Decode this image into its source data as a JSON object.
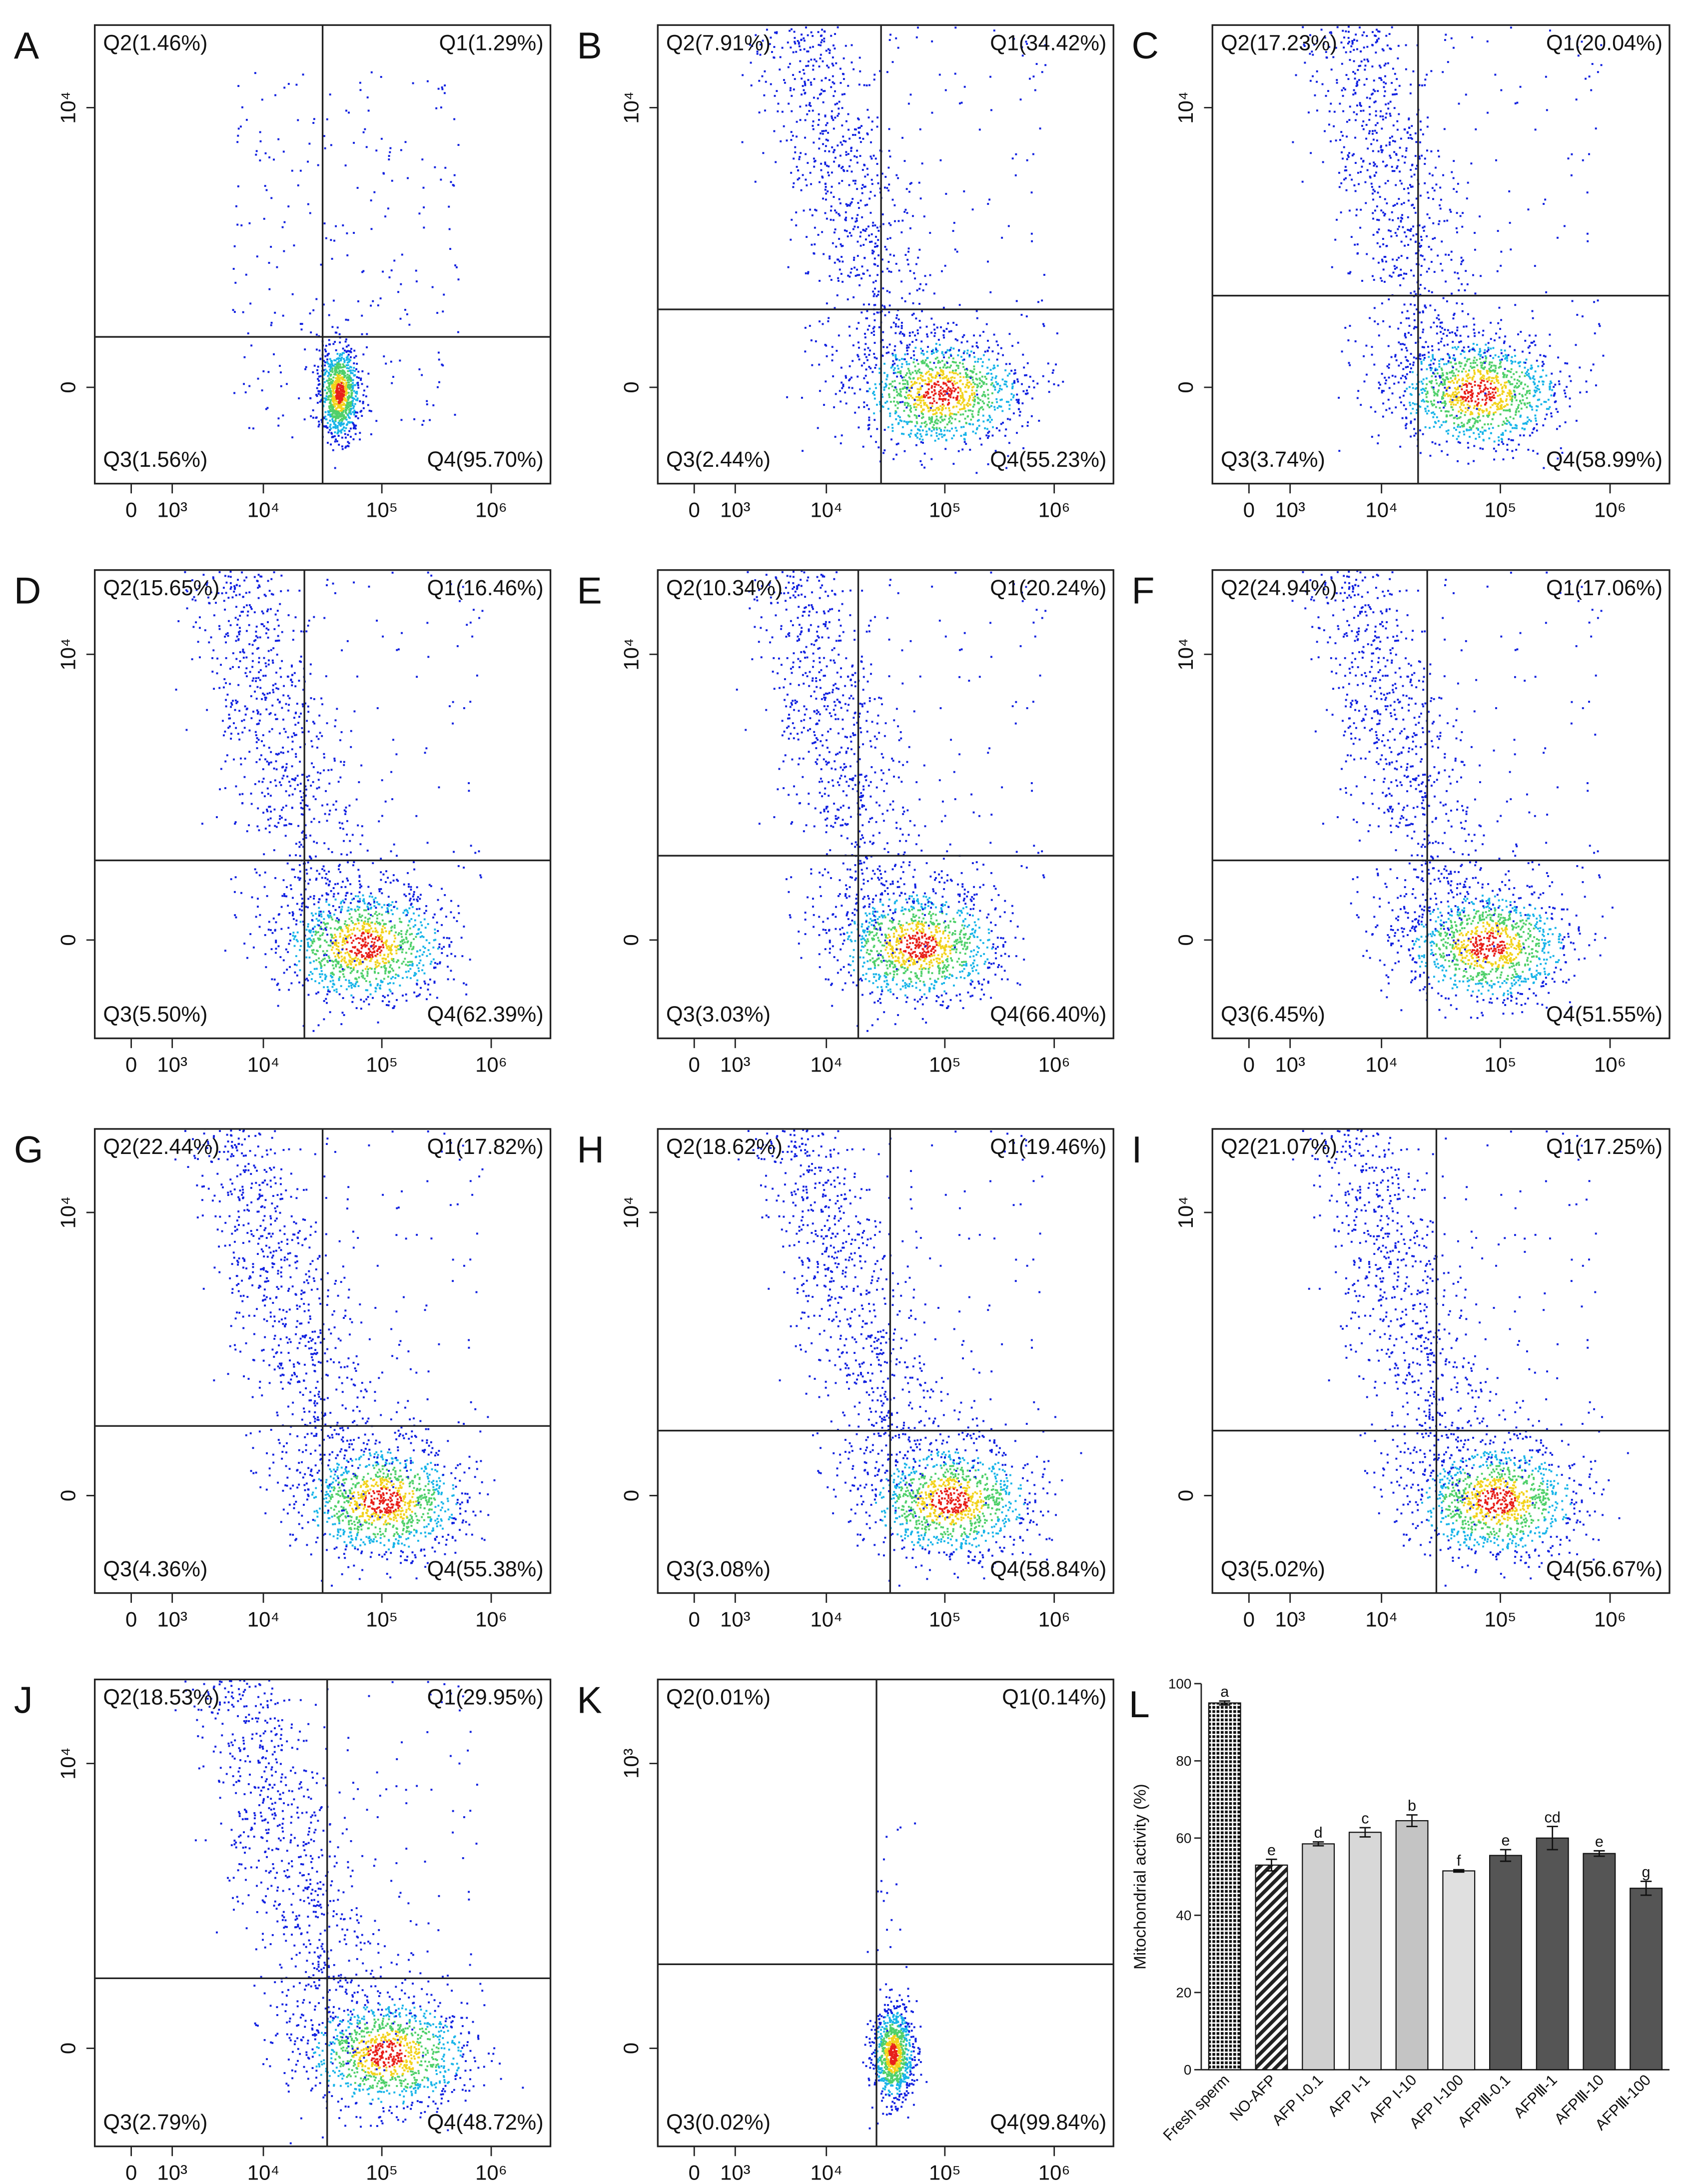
{
  "flow_panels": [
    {
      "letter": "A",
      "q1": "Q1(1.29%)",
      "q2": "Q2(1.46%)",
      "q3": "Q3(1.56%)",
      "q4": "Q4(95.70%)",
      "ytick_high": "10⁴",
      "ytick_zero": "0",
      "xticks": [
        "0",
        "10³",
        "10⁴",
        "10⁵",
        "10⁶"
      ]
    },
    {
      "letter": "B",
      "q1": "Q1(34.42%)",
      "q2": "Q2(7.91%)",
      "q3": "Q3(2.44%)",
      "q4": "Q4(55.23%)",
      "ytick_high": "10⁴",
      "ytick_zero": "0",
      "xticks": [
        "0",
        "10³",
        "10⁴",
        "10⁵",
        "10⁶"
      ]
    },
    {
      "letter": "C",
      "q1": "Q1(20.04%)",
      "q2": "Q2(17.23%)",
      "q3": "Q3(3.74%)",
      "q4": "Q4(58.99%)",
      "ytick_high": "10⁴",
      "ytick_zero": "0",
      "xticks": [
        "0",
        "10³",
        "10⁴",
        "10⁵",
        "10⁶"
      ]
    },
    {
      "letter": "D",
      "q1": "Q1(16.46%)",
      "q2": "Q2(15.65%)",
      "q3": "Q3(5.50%)",
      "q4": "Q4(62.39%)",
      "ytick_high": "10⁴",
      "ytick_zero": "0",
      "xticks": [
        "0",
        "10³",
        "10⁴",
        "10⁵",
        "10⁶"
      ]
    },
    {
      "letter": "E",
      "q1": "Q1(20.24%)",
      "q2": "Q2(10.34%)",
      "q3": "Q3(3.03%)",
      "q4": "Q4(66.40%)",
      "ytick_high": "10⁴",
      "ytick_zero": "0",
      "xticks": [
        "0",
        "10³",
        "10⁴",
        "10⁵",
        "10⁶"
      ]
    },
    {
      "letter": "F",
      "q1": "Q1(17.06%)",
      "q2": "Q2(24.94%)",
      "q3": "Q3(6.45%)",
      "q4": "Q4(51.55%)",
      "ytick_high": "10⁴",
      "ytick_zero": "0",
      "xticks": [
        "0",
        "10³",
        "10⁴",
        "10⁵",
        "10⁶"
      ]
    },
    {
      "letter": "G",
      "q1": "Q1(17.82%)",
      "q2": "Q2(22.44%)",
      "q3": "Q3(4.36%)",
      "q4": "Q4(55.38%)",
      "ytick_high": "10⁴",
      "ytick_zero": "0",
      "xticks": [
        "0",
        "10³",
        "10⁴",
        "10⁵",
        "10⁶"
      ]
    },
    {
      "letter": "H",
      "q1": "Q1(19.46%)",
      "q2": "Q2(18.62%)",
      "q3": "Q3(3.08%)",
      "q4": "Q4(58.84%)",
      "ytick_high": "10⁴",
      "ytick_zero": "0",
      "xticks": [
        "0",
        "10³",
        "10⁴",
        "10⁵",
        "10⁶"
      ]
    },
    {
      "letter": "I",
      "q1": "Q1(17.25%)",
      "q2": "Q2(21.07%)",
      "q3": "Q3(5.02%)",
      "q4": "Q4(56.67%)",
      "ytick_high": "10⁴",
      "ytick_zero": "0",
      "xticks": [
        "0",
        "10³",
        "10⁴",
        "10⁵",
        "10⁶"
      ]
    },
    {
      "letter": "J",
      "q1": "Q1(29.95%)",
      "q2": "Q2(18.53%)",
      "q3": "Q3(2.79%)",
      "q4": "Q4(48.72%)",
      "ytick_high": "10⁴",
      "ytick_zero": "0",
      "xticks": [
        "0",
        "10³",
        "10⁴",
        "10⁵",
        "10⁶"
      ]
    },
    {
      "letter": "K",
      "q1": "Q1(0.14%)",
      "q2": "Q2(0.01%)",
      "q3": "Q3(0.02%)",
      "q4": "Q4(99.84%)",
      "ytick_high": "10³",
      "ytick_zero": "0",
      "xticks": [
        "0",
        "10³",
        "10⁴",
        "10⁵",
        "10⁶"
      ]
    }
  ],
  "chart_data": {
    "type": "bar",
    "letter": "L",
    "ylabel": "Mitochondrial activity (%)",
    "categories": [
      "Fresh sperm",
      "NO-AFP",
      "AFP I-0.1",
      "AFP I-1",
      "AFP I-10",
      "AFP I-100",
      "AFPⅢ-0.1",
      "AFPⅢ-1",
      "AFPⅢ-10",
      "AFPⅢ-100"
    ],
    "values": [
      95,
      53,
      58.5,
      61.5,
      64.5,
      51.5,
      55.5,
      60,
      56,
      47
    ],
    "errors": [
      0.5,
      1.5,
      0.5,
      1.2,
      1.5,
      0.3,
      1.5,
      3,
      0.7,
      1.8
    ],
    "annotations": [
      "a",
      "e",
      "d",
      "c",
      "b",
      "f",
      "e",
      "cd",
      "e",
      "g"
    ],
    "colors": [
      "#1a1a1a",
      "#333333",
      "#d0d0d0",
      "#d8d8d8",
      "#c4c4c4",
      "#e0e0e0",
      "#555555",
      "#555555",
      "#555555",
      "#555555"
    ],
    "ylim": [
      0,
      100
    ],
    "yticks": [
      0,
      20,
      40,
      60,
      80,
      100
    ]
  }
}
